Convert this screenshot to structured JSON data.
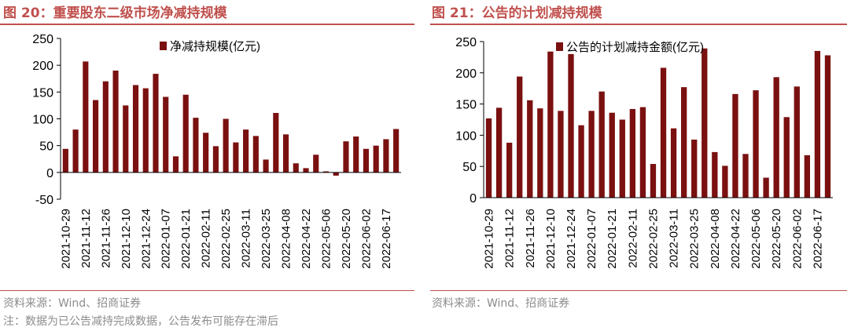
{
  "left_title": "图 20：重要股东二级市场净减持规模",
  "right_title": "图 21：公告的计划减持规模",
  "left_source": "资料来源：Wind、招商证券",
  "left_note": "注：数据为已公告减持完成数据，公告发布可能存在滞后",
  "right_source": "资料来源：Wind、招商证券",
  "chart_data": [
    {
      "type": "bar",
      "title": "",
      "legend": "净减持规模(亿元)",
      "legend_position": "top",
      "color": "#7a1010",
      "ylim": [
        -50,
        250
      ],
      "yticks": [
        -50,
        0,
        50,
        100,
        150,
        200,
        250
      ],
      "tick_labels": [
        "2021-10-29",
        "2021-11-12",
        "2021-11-26",
        "2021-12-10",
        "2021-12-24",
        "2022-01-07",
        "2022-01-21",
        "2022-02-11",
        "2022-02-25",
        "2022-03-11",
        "2022-03-25",
        "2022-04-08",
        "2022-04-22",
        "2022-05-06",
        "2022-05-20",
        "2022-06-02",
        "2022-06-17"
      ],
      "values": [
        44,
        80,
        207,
        135,
        170,
        190,
        125,
        163,
        157,
        184,
        141,
        30,
        145,
        102,
        74,
        49,
        100,
        56,
        80,
        68,
        24,
        111,
        71,
        17,
        8,
        33,
        2,
        -6,
        58,
        67,
        44,
        50,
        62,
        81
      ],
      "grid": false
    },
    {
      "type": "bar",
      "title": "",
      "legend": "公告的计划减持金额(亿元)",
      "legend_position": "top",
      "color": "#7a1010",
      "ylim": [
        0,
        250
      ],
      "yticks": [
        0,
        50,
        100,
        150,
        200,
        250
      ],
      "tick_labels": [
        "2021-10-29",
        "2021-11-12",
        "2021-11-26",
        "2021-12-10",
        "2021-12-24",
        "2022-01-07",
        "2022-01-21",
        "2022-02-11",
        "2022-02-25",
        "2022-03-11",
        "2022-03-25",
        "2022-04-08",
        "2022-04-22",
        "2022-05-06",
        "2022-05-20",
        "2022-06-02",
        "2022-06-17"
      ],
      "values": [
        127,
        144,
        88,
        194,
        156,
        143,
        234,
        139,
        230,
        116,
        139,
        170,
        136,
        125,
        142,
        145,
        54,
        208,
        111,
        177,
        93,
        239,
        73,
        51,
        166,
        70,
        172,
        32,
        193,
        129,
        178,
        68,
        235,
        228
      ],
      "grid": false
    }
  ]
}
